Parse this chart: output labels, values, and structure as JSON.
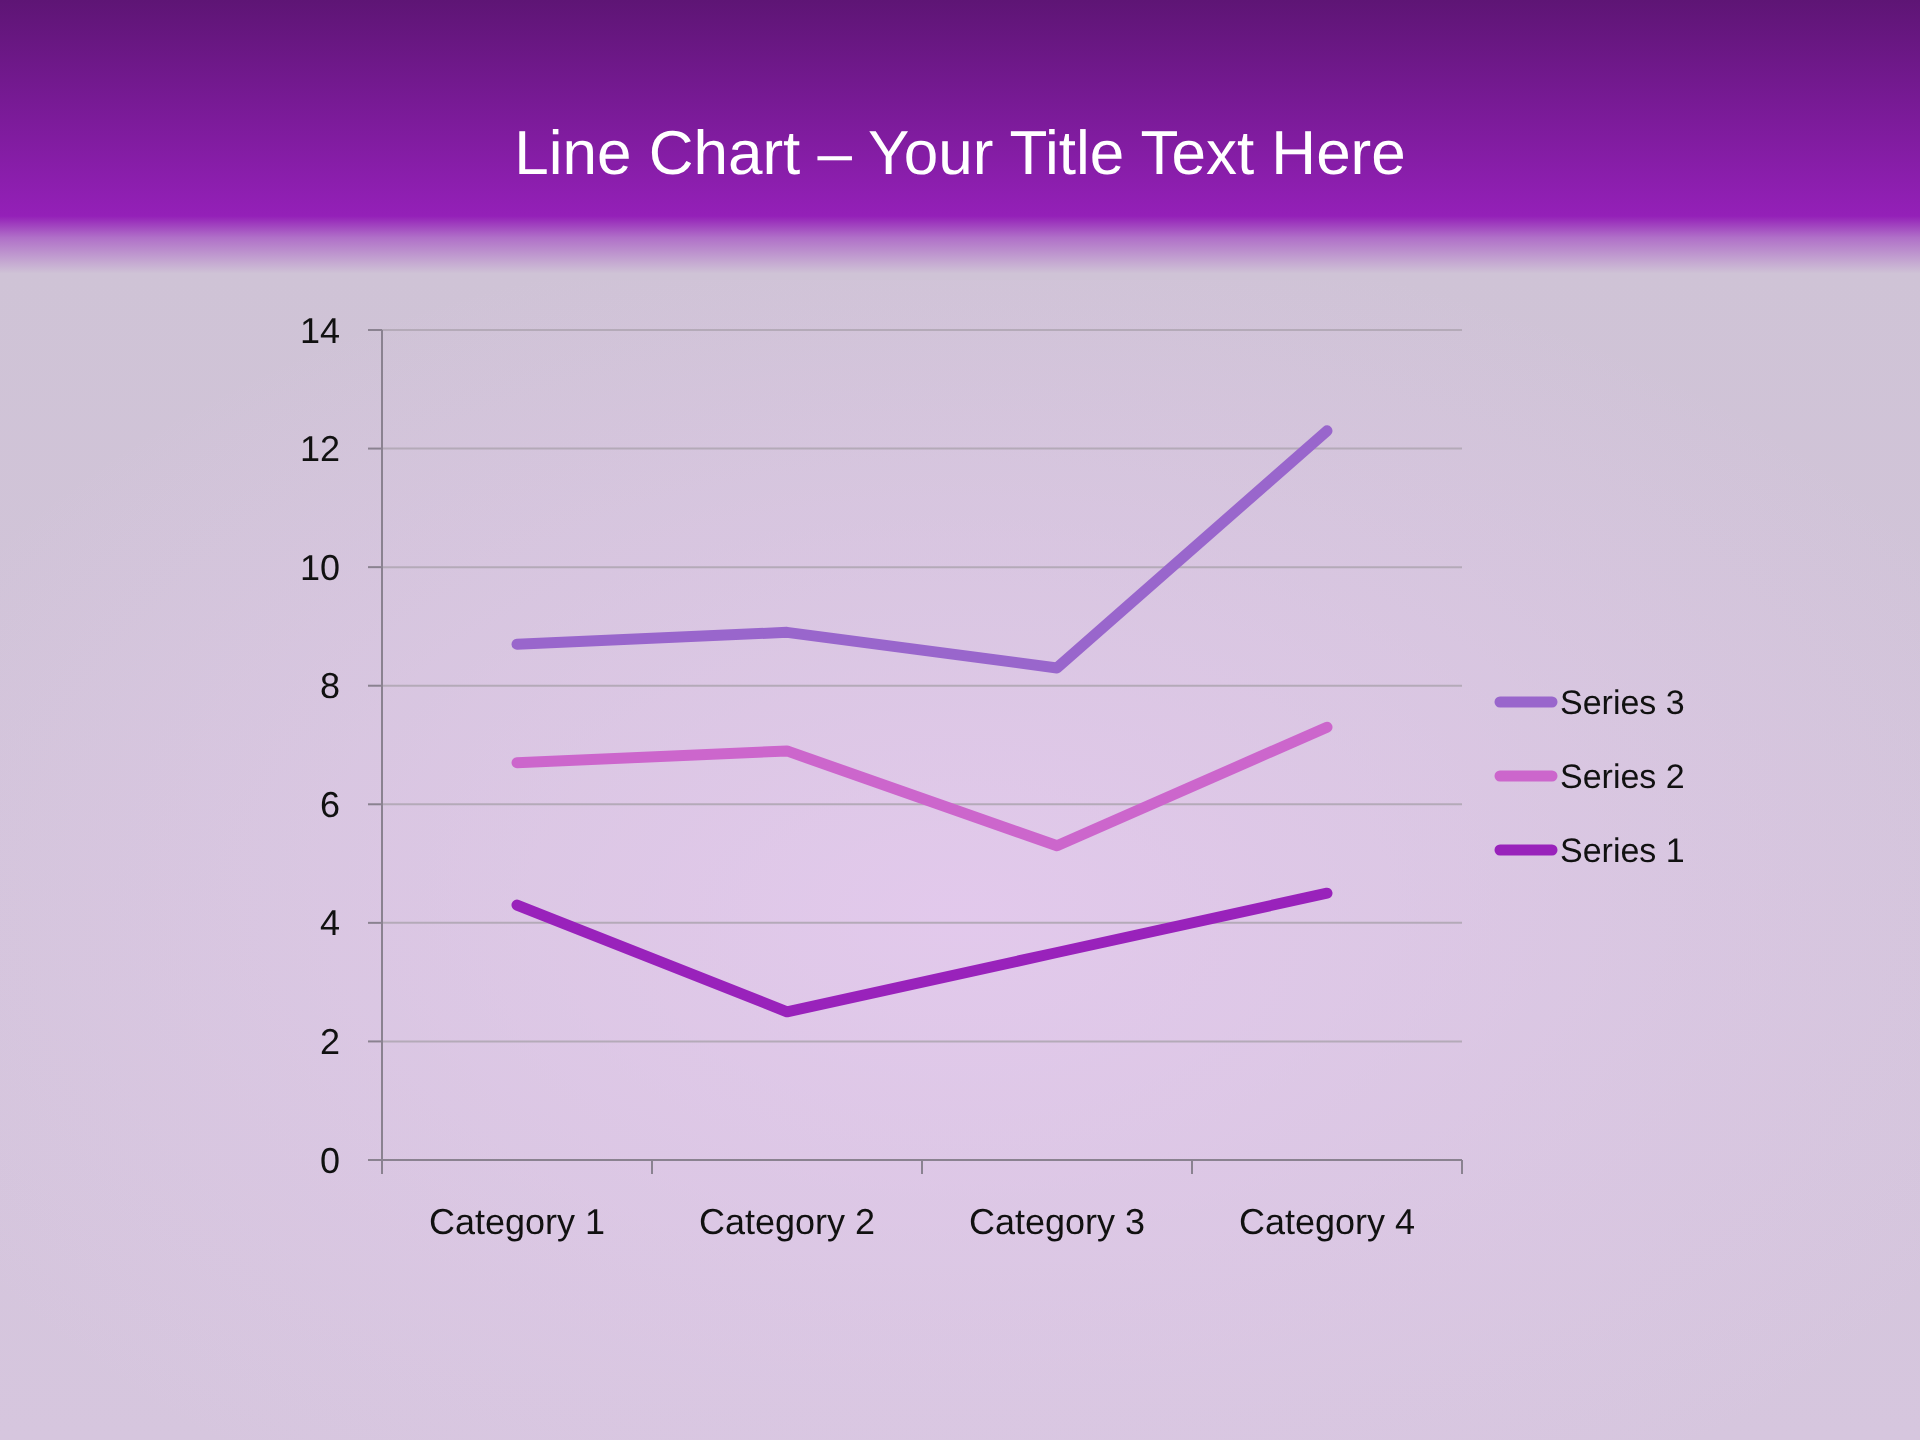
{
  "chart_data": {
    "type": "line",
    "title": "Line Chart – Your Title Text Here",
    "categories": [
      "Category 1",
      "Category 2",
      "Category 3",
      "Category 4"
    ],
    "series": [
      {
        "name": "Series 1",
        "color": "#9922bb",
        "values": [
          4.3,
          2.5,
          3.5,
          4.5
        ]
      },
      {
        "name": "Series 2",
        "color": "#cc66cc",
        "values": [
          6.7,
          6.9,
          5.3,
          7.3
        ]
      },
      {
        "name": "Series 3",
        "color": "#9966cc",
        "values": [
          8.7,
          8.9,
          8.3,
          12.3
        ]
      }
    ],
    "ylim": [
      0,
      14
    ],
    "yticks": [
      0,
      2,
      4,
      6,
      8,
      10,
      12,
      14
    ],
    "grid": "y",
    "legend": "right",
    "marker": "none",
    "line_style": "solid"
  }
}
